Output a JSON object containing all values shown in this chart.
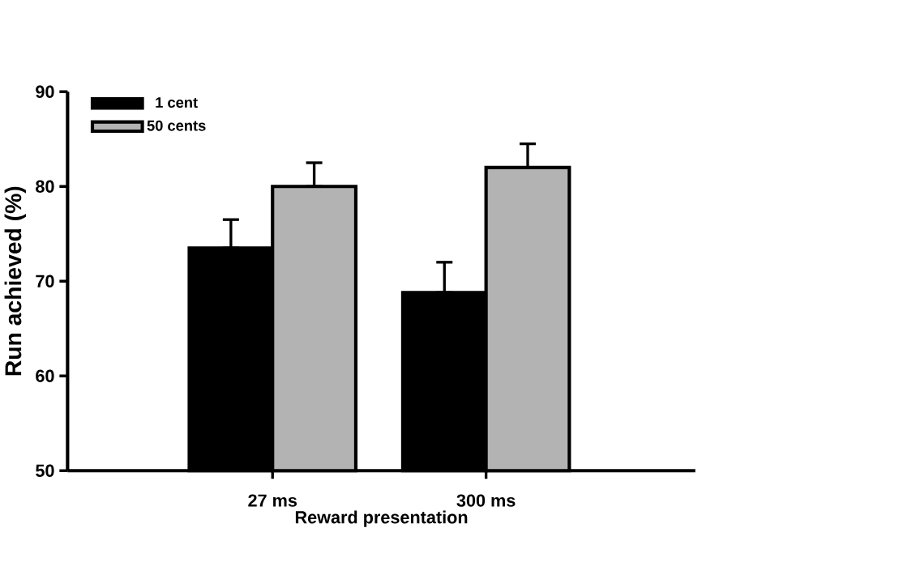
{
  "chart_data": {
    "type": "bar",
    "xlabel": "Reward presentation",
    "ylabel": "Run achieved (%)",
    "categories": [
      "27 ms",
      "300 ms"
    ],
    "series": [
      {
        "name": "1 cent",
        "color": "#000000",
        "values": [
          73.5,
          68.8
        ],
        "errors": [
          [
            73.5,
            76.5
          ],
          [
            68.8,
            72
          ]
        ]
      },
      {
        "name": "50  cents",
        "color": "#b3b3b3",
        "values": [
          80,
          82
        ],
        "errors": [
          [
            80,
            82.5
          ],
          [
            82,
            84.5
          ]
        ]
      }
    ],
    "ylim": [
      50,
      90
    ],
    "yticks": [
      50,
      60,
      70,
      80,
      90
    ],
    "legend": "top left",
    "grid": false
  }
}
